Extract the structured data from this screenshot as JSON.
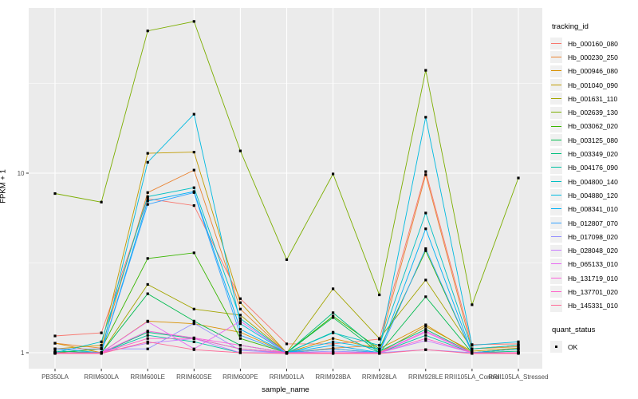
{
  "chart_data": {
    "type": "line",
    "title": "",
    "xlabel": "sample_name",
    "ylabel": "FPKM + 1",
    "y_scale": "log10",
    "ylim": [
      0.82,
      83
    ],
    "grid": {
      "major_y": [
        1,
        10
      ],
      "minor_y": [
        3.162,
        31.62
      ],
      "vertical_at_each_category": true
    },
    "legend_position": "right",
    "panel_color": "#ebebeb",
    "gridline_color": "#ffffff",
    "marker": {
      "shape": "square",
      "color": "#000000",
      "meaning": "quant_status OK"
    },
    "y_ticks": [
      {
        "label": "10",
        "value": 10
      },
      {
        "label": "1",
        "value": 1
      }
    ],
    "categories": [
      "PB350LA",
      "RRIM600LA",
      "RRIM600LE",
      "RRIM600SE",
      "RRIM600PE",
      "RRIM901LA",
      "RRIM928BA",
      "RRIM928LA",
      "RRIM928LE",
      "RRII105LA_Control",
      "RRII105LA_Stressed"
    ],
    "series": [
      {
        "name": "Hb_000160_080",
        "color": "#F8766D",
        "values": [
          1.24,
          1.29,
          7.2,
          6.6,
          2.0,
          1.12,
          1.12,
          1.19,
          10.2,
          1.11,
          1.12
        ]
      },
      {
        "name": "Hb_000230_250",
        "color": "#EA8331",
        "values": [
          1.13,
          1.06,
          7.8,
          10.4,
          1.75,
          1.0,
          1.06,
          1.1,
          9.8,
          1.05,
          1.08
        ]
      },
      {
        "name": "Hb_000946_080",
        "color": "#D89000",
        "values": [
          1.13,
          1.0,
          1.5,
          1.45,
          1.3,
          1.0,
          1.2,
          1.05,
          1.43,
          1.0,
          1.05
        ]
      },
      {
        "name": "Hb_001040_090",
        "color": "#C09B00",
        "values": [
          1.05,
          1.1,
          12.9,
          13.1,
          1.9,
          1.0,
          1.05,
          1.0,
          1.4,
          1.02,
          1.06
        ]
      },
      {
        "name": "Hb_001631_110",
        "color": "#A3A500",
        "values": [
          1.0,
          1.0,
          2.4,
          1.75,
          1.62,
          1.0,
          2.27,
          1.2,
          2.54,
          1.05,
          1.1
        ]
      },
      {
        "name": "Hb_002639_130",
        "color": "#7CAE00",
        "values": [
          7.7,
          6.9,
          62.0,
          70.0,
          13.3,
          3.3,
          9.9,
          2.1,
          37.4,
          1.85,
          9.4
        ]
      },
      {
        "name": "Hb_003062_020",
        "color": "#39B600",
        "values": [
          1.0,
          1.05,
          3.35,
          3.6,
          1.2,
          1.0,
          1.6,
          1.05,
          3.7,
          1.0,
          1.05
        ]
      },
      {
        "name": "Hb_003125_080",
        "color": "#00BB4E",
        "values": [
          1.0,
          1.0,
          2.13,
          1.5,
          1.1,
          1.0,
          1.57,
          1.0,
          2.05,
          1.0,
          1.0
        ]
      },
      {
        "name": "Hb_003349_020",
        "color": "#00BF7D",
        "values": [
          1.02,
          1.0,
          1.3,
          1.2,
          1.05,
          1.0,
          1.67,
          1.02,
          1.35,
          1.0,
          1.02
        ]
      },
      {
        "name": "Hb_004176_090",
        "color": "#00C1A3",
        "values": [
          1.0,
          1.0,
          1.25,
          1.15,
          1.0,
          1.0,
          1.3,
          1.0,
          1.25,
          1.0,
          1.0
        ]
      },
      {
        "name": "Hb_004800_140",
        "color": "#00BFC4",
        "values": [
          1.0,
          1.15,
          7.4,
          8.3,
          1.55,
          1.0,
          1.29,
          1.1,
          6.0,
          1.05,
          1.1
        ]
      },
      {
        "name": "Hb_004880_120",
        "color": "#00BAE0",
        "values": [
          1.05,
          1.0,
          11.5,
          21.3,
          1.45,
          1.0,
          1.15,
          1.05,
          20.5,
          1.1,
          1.15
        ]
      },
      {
        "name": "Hb_008341_010",
        "color": "#00B0F6",
        "values": [
          1.0,
          1.0,
          7.0,
          7.9,
          1.35,
          1.0,
          1.1,
          1.0,
          4.9,
          1.0,
          1.05
        ]
      },
      {
        "name": "Hb_012807_070",
        "color": "#35A2FF",
        "values": [
          1.0,
          1.0,
          6.7,
          7.8,
          1.25,
          1.0,
          1.05,
          1.0,
          3.8,
          1.0,
          1.0
        ]
      },
      {
        "name": "Hb_017098_020",
        "color": "#9590FF",
        "values": [
          1.05,
          1.05,
          1.05,
          1.46,
          1.03,
          1.0,
          1.02,
          1.0,
          1.04,
          1.0,
          1.0
        ]
      },
      {
        "name": "Hb_028048_020",
        "color": "#C77CFF",
        "values": [
          1.0,
          1.0,
          1.13,
          1.2,
          1.0,
          1.0,
          1.0,
          1.0,
          1.17,
          1.0,
          1.0
        ]
      },
      {
        "name": "Hb_065133_010",
        "color": "#E76BF3",
        "values": [
          1.0,
          1.0,
          1.49,
          1.05,
          1.5,
          1.0,
          1.0,
          1.0,
          1.3,
          1.0,
          1.0
        ]
      },
      {
        "name": "Hb_131719_010",
        "color": "#FA62DB",
        "values": [
          1.0,
          1.0,
          1.32,
          1.21,
          1.1,
          1.0,
          1.0,
          1.0,
          1.32,
          1.0,
          1.0
        ]
      },
      {
        "name": "Hb_137701_020",
        "color": "#FF61C9",
        "values": [
          1.0,
          1.0,
          1.2,
          1.2,
          1.05,
          1.0,
          1.0,
          1.0,
          1.2,
          1.0,
          1.0
        ]
      },
      {
        "name": "Hb_145331_010",
        "color": "#FF6A98",
        "values": [
          0.99,
          0.99,
          1.15,
          1.04,
          1.0,
          0.99,
          0.99,
          0.99,
          1.04,
          0.99,
          0.99
        ]
      }
    ]
  },
  "legend": {
    "tracking_title": "tracking_id",
    "quant_title": "quant_status",
    "quant_items": [
      {
        "label": "OK"
      }
    ]
  }
}
